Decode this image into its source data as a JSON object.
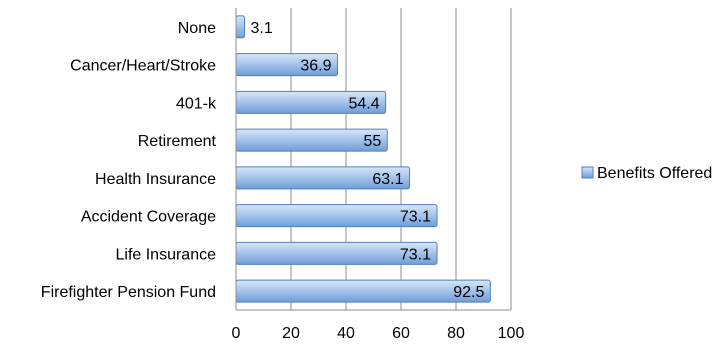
{
  "chart_data": {
    "type": "bar",
    "orientation": "horizontal",
    "title": "",
    "xlabel": "",
    "ylabel": "",
    "categories": [
      "None",
      "Cancer/Heart/Stroke",
      "401-k",
      "Retirement",
      "Health Insurance",
      "Accident Coverage",
      "Life Insurance",
      "Firefighter Pension Fund"
    ],
    "series": [
      {
        "name": "Benefits Offered",
        "values": [
          3.1,
          36.9,
          54.4,
          55,
          63.1,
          73.1,
          73.1,
          92.5
        ],
        "labels": [
          "3.1",
          "36.9",
          "54.4",
          "55",
          "63.1",
          "73.1",
          "73.1",
          "92.5"
        ],
        "color": "#8db3e2"
      }
    ],
    "xlim": [
      0,
      100
    ],
    "xticks": [
      "0",
      "20",
      "40",
      "60",
      "80",
      "100"
    ],
    "grid": true,
    "legend": "right"
  }
}
